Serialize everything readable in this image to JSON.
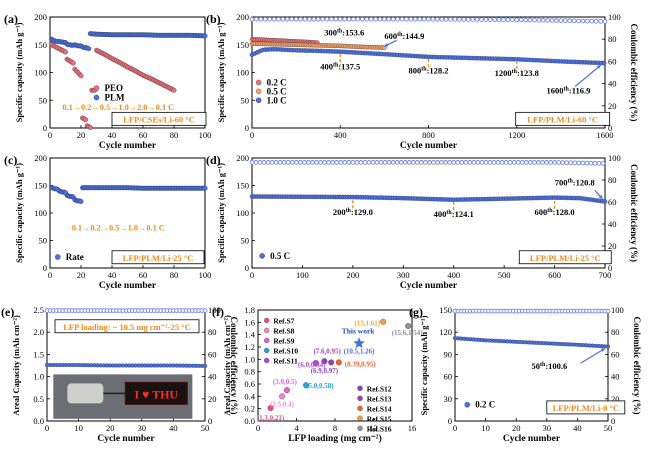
{
  "colors": {
    "red": "#e8707a",
    "blue": "#4a6fe0",
    "orange": "#f7a267",
    "ce": "#6f84e4",
    "ann_orange": "#f08a1a",
    "ann_blue": "#1f4fbf"
  },
  "chart_data": [
    {
      "id": "a",
      "type": "scatter",
      "panel_label": "(a)",
      "xlabel": "Cycle number",
      "ylabel": "Specific capacity (mAh g⁻¹)",
      "xlim": [
        0,
        100
      ],
      "ylim": [
        0,
        200
      ],
      "xticks": [
        "0",
        "20",
        "40",
        "60",
        "80",
        "100"
      ],
      "yticks": [
        "0",
        "50",
        "100",
        "150",
        "200"
      ],
      "legend": [
        "PEO",
        "PLM"
      ],
      "annotations": [
        "0.1→0.2→0.5→1.0→2.0→0.1 C",
        "LFP/CSEs/Li-60 °C"
      ],
      "series": [
        {
          "name": "PEO",
          "color_key": "red",
          "x": [
            1,
            2,
            3,
            4,
            5,
            6,
            7,
            8,
            9,
            10,
            11,
            12,
            13,
            14,
            15,
            16,
            17,
            18,
            19,
            20,
            21,
            22,
            23,
            24,
            25,
            26,
            30,
            35,
            40,
            45,
            50,
            55,
            60,
            65,
            70,
            75,
            80
          ],
          "y": [
            150,
            148,
            146,
            144,
            143,
            141,
            140,
            139,
            138,
            137,
            124,
            122,
            120,
            118,
            117,
            106,
            102,
            98,
            96,
            94,
            18,
            16,
            15,
            4,
            2,
            1,
            140,
            133,
            125,
            118,
            110,
            103,
            95,
            89,
            82,
            75,
            68
          ]
        },
        {
          "name": "PLM",
          "color_key": "blue",
          "x": [
            1,
            2,
            3,
            4,
            5,
            6,
            7,
            8,
            9,
            10,
            11,
            12,
            13,
            14,
            15,
            16,
            17,
            18,
            19,
            20,
            21,
            22,
            23,
            24,
            25,
            26,
            30,
            40,
            50,
            60,
            70,
            80,
            90,
            100
          ],
          "y": [
            160,
            158,
            157,
            156,
            156,
            156,
            155,
            155,
            154,
            154,
            151,
            150,
            150,
            149,
            149,
            150,
            149,
            148,
            148,
            148,
            146,
            145,
            145,
            144,
            143,
            170,
            169,
            168,
            168,
            168,
            167,
            167,
            167,
            166
          ]
        }
      ]
    },
    {
      "id": "b",
      "type": "scatter",
      "panel_label": "(b)",
      "xlabel": "Cycle number",
      "ylabel": "Specific capacity (mAh g⁻¹)",
      "y2label": "Coulombic efficiency (%)",
      "xlim": [
        0,
        1600
      ],
      "ylim": [
        0,
        200
      ],
      "y2lim": [
        0,
        100
      ],
      "xticks": [
        "0",
        "400",
        "800",
        "1200",
        "1600"
      ],
      "yticks": [
        "0",
        "50",
        "100",
        "150",
        "200"
      ],
      "y2ticks": [
        "0",
        "20",
        "40",
        "60",
        "80",
        "100"
      ],
      "legend": [
        "0.2 C",
        "0.5 C",
        "1.0 C"
      ],
      "annotations": [
        "LFP/PLM/Li-60 °C"
      ],
      "data_labels": [
        {
          "cycle": "300",
          "capacity": "153.6"
        },
        {
          "cycle": "400",
          "capacity": "137.5"
        },
        {
          "cycle": "600",
          "capacity": "144.9"
        },
        {
          "cycle": "800",
          "capacity": "128.2"
        },
        {
          "cycle": "1200",
          "capacity": "123.8"
        },
        {
          "cycle": "1600",
          "capacity": "116.9"
        }
      ],
      "series": [
        {
          "name": "0.2 C",
          "color_key": "red",
          "x": [
            0,
            50,
            100,
            150,
            200,
            250,
            300
          ],
          "y": [
            160,
            159,
            158,
            157,
            156,
            155,
            153.6
          ]
        },
        {
          "name": "0.5 C",
          "color_key": "orange",
          "x": [
            0,
            100,
            200,
            300,
            400,
            500,
            600
          ],
          "y": [
            152,
            151,
            150,
            149,
            148,
            146,
            144.9
          ]
        },
        {
          "name": "1.0 C",
          "color_key": "blue",
          "x": [
            0,
            50,
            100,
            200,
            300,
            400,
            600,
            800,
            1000,
            1200,
            1400,
            1600
          ],
          "y": [
            132,
            141,
            142,
            140,
            139,
            137.5,
            133,
            128.2,
            126,
            123.8,
            120,
            116.9
          ]
        }
      ],
      "ce_series": {
        "x": [
          0,
          400,
          800,
          1200,
          1600
        ],
        "y": [
          98,
          98,
          98,
          97.5,
          96
        ]
      }
    },
    {
      "id": "c",
      "type": "scatter",
      "panel_label": "(c)",
      "xlabel": "Cycle number",
      "ylabel": "Specific capacity (mAh g⁻¹)",
      "xlim": [
        0,
        100
      ],
      "ylim": [
        0,
        200
      ],
      "xticks": [
        "0",
        "20",
        "40",
        "60",
        "80",
        "100"
      ],
      "yticks": [
        "0",
        "50",
        "100",
        "150",
        "200"
      ],
      "legend": [
        "Rate"
      ],
      "annotations": [
        "0.1→0.2→0.5→1.0→0.1 C",
        "LFP/PLM/Li-25 °C"
      ],
      "series": [
        {
          "name": "Rate",
          "color_key": "blue",
          "x": [
            1,
            2,
            3,
            4,
            5,
            6,
            7,
            8,
            9,
            10,
            11,
            12,
            13,
            14,
            15,
            16,
            17,
            18,
            19,
            20,
            21,
            30,
            40,
            50,
            60,
            70,
            80,
            90,
            100
          ],
          "y": [
            146,
            145,
            144,
            144,
            143,
            140,
            139,
            138,
            138,
            137,
            132,
            131,
            130,
            130,
            129,
            124,
            123,
            122,
            122,
            121,
            146,
            146,
            146,
            146,
            145,
            145,
            145,
            145,
            145
          ]
        }
      ]
    },
    {
      "id": "d",
      "type": "scatter",
      "panel_label": "(d)",
      "xlabel": "Cycle number",
      "ylabel": "Specific capacity (mAh g⁻¹)",
      "y2label": "Coulombic efficiency (%)",
      "xlim": [
        0,
        700
      ],
      "ylim": [
        0,
        200
      ],
      "y2lim": [
        0,
        100
      ],
      "xticks": [
        "0",
        "100",
        "200",
        "300",
        "400",
        "500",
        "600",
        "700"
      ],
      "yticks": [
        "0",
        "50",
        "100",
        "150",
        "200"
      ],
      "y2ticks": [
        "0",
        "20",
        "40",
        "60",
        "80",
        "100"
      ],
      "legend": [
        "0.5 C"
      ],
      "annotations": [
        "LFP/PLM/Li-25 °C"
      ],
      "data_labels": [
        {
          "cycle": "200",
          "capacity": "129.0"
        },
        {
          "cycle": "400",
          "capacity": "124.1"
        },
        {
          "cycle": "600",
          "capacity": "128.0"
        },
        {
          "cycle": "700",
          "capacity": "120.8"
        }
      ],
      "series": [
        {
          "name": "0.5 C",
          "color_key": "blue",
          "x": [
            0,
            100,
            200,
            300,
            400,
            500,
            600,
            650,
            700
          ],
          "y": [
            130,
            129.5,
            129,
            127,
            124.1,
            126,
            128,
            127,
            120.8
          ]
        }
      ],
      "ce_series": {
        "x": [
          0,
          200,
          400,
          600,
          700
        ],
        "y": [
          96,
          96,
          96,
          96,
          95
        ]
      }
    },
    {
      "id": "e",
      "type": "scatter",
      "panel_label": "(e)",
      "xlabel": "Cycle number",
      "ylabel": "Areal Capacity (mAh cm⁻²)",
      "y2label": "Coulombic efficiency (%)",
      "xlim": [
        0,
        50
      ],
      "ylim": [
        0,
        2.5
      ],
      "y2lim": [
        0,
        100
      ],
      "xticks": [
        "0",
        "10",
        "20",
        "30",
        "40",
        "50"
      ],
      "yticks": [
        "0.0",
        "0.5",
        "1.0",
        "1.5",
        "2.0",
        "2.5"
      ],
      "y2ticks": [
        "0",
        "20",
        "40",
        "60",
        "80",
        "100"
      ],
      "annotations": [
        "LFP loading: ~ 10.5 mg cm⁻²-25 °C"
      ],
      "inset_display_text": "I ♥ THU",
      "series": [
        {
          "name": "capacity",
          "color_key": "blue",
          "x": [
            0,
            10,
            20,
            30,
            40,
            50
          ],
          "y": [
            1.26,
            1.26,
            1.25,
            1.25,
            1.25,
            1.24
          ]
        }
      ],
      "ce_series": {
        "x": [
          0,
          10,
          20,
          30,
          40,
          50
        ],
        "y": [
          99.5,
          99.5,
          99.5,
          99.5,
          99.5,
          99.5
        ]
      }
    },
    {
      "id": "f",
      "type": "scatter",
      "panel_label": "(f)",
      "xlabel": "LFP loading (mg cm⁻²)",
      "ylabel": "Areal Capacity (mAh cm⁻²)",
      "xlim": [
        0,
        16
      ],
      "ylim": [
        0,
        1.8
      ],
      "xticks": [
        "0",
        "4",
        "8",
        "12",
        "16"
      ],
      "yticks": [
        "0.0",
        "0.2",
        "0.4",
        "0.6",
        "0.8",
        "1.0",
        "1.2",
        "1.4",
        "1.6",
        "1.8"
      ],
      "legend": [
        "Ref.S7",
        "Ref.S8",
        "Ref.S9",
        "Ref.S10",
        "Ref.S11",
        "Ref.S12",
        "Ref.S13",
        "Ref.S14",
        "Ref.S15",
        "Ref.S16",
        "This work"
      ],
      "points": [
        {
          "name": "Ref.S7",
          "x": 1.3,
          "y": 0.21,
          "label": "(1.3,0.21)",
          "color": "#e8508a"
        },
        {
          "name": "Ref.S8",
          "x": 2.5,
          "y": 0.4,
          "label": "(2.5,0.4)",
          "color": "#f08ad0"
        },
        {
          "name": "Ref.S9",
          "x": 3.0,
          "y": 0.5,
          "label": "(3.0,0.5)",
          "color": "#e75fd0"
        },
        {
          "name": "Ref.S10",
          "x": 5.0,
          "y": 0.58,
          "label": "(5.0,0.58)",
          "color": "#20a8e0"
        },
        {
          "name": "Ref.S11",
          "x": 6.0,
          "y": 0.94,
          "label": "(6.0,0.94)",
          "color": "#b048d8"
        },
        {
          "name": "Ref.S12",
          "x": 6.9,
          "y": 0.97,
          "label": "(6.9,0.97)",
          "color": "#8a40c8"
        },
        {
          "name": "Ref.S13",
          "x": 7.6,
          "y": 0.95,
          "label": "(7.6,0.95)",
          "color": "#a040b0"
        },
        {
          "name": "Ref.S14",
          "x": 8.39,
          "y": 0.95,
          "label": "(8.39,0.95)",
          "color": "#f0603a"
        },
        {
          "name": "Ref.S15",
          "x": 13.0,
          "y": 1.61,
          "label": "(13,1.61)",
          "color": "#f0a040"
        },
        {
          "name": "Ref.S16",
          "x": 15.6,
          "y": 1.54,
          "label": "(15.6,1.54)",
          "color": "#909090"
        },
        {
          "name": "This work",
          "x": 10.5,
          "y": 1.26,
          "label": "(10.5,1.26)",
          "color": "#4a6fe0"
        }
      ]
    },
    {
      "id": "g",
      "type": "scatter",
      "panel_label": "(g)",
      "xlabel": "Cycle number",
      "ylabel": "Specific capacity (mAh g⁻¹)",
      "y2label": "Coulombic efficiency (%)",
      "xlim": [
        0,
        50
      ],
      "ylim": [
        0,
        150
      ],
      "y2lim": [
        0,
        100
      ],
      "xticks": [
        "0",
        "10",
        "20",
        "30",
        "40",
        "50"
      ],
      "yticks": [
        "0",
        "30",
        "60",
        "90",
        "120",
        "150"
      ],
      "y2ticks": [
        "0",
        "20",
        "40",
        "60",
        "80",
        "100"
      ],
      "legend": [
        "0.2 C"
      ],
      "annotations": [
        "LFP/PLM/Li-0 °C"
      ],
      "data_labels": [
        {
          "cycle": "50",
          "capacity": "100.6"
        }
      ],
      "series": [
        {
          "name": "0.2 C",
          "color_key": "blue",
          "x": [
            0,
            10,
            20,
            30,
            40,
            50
          ],
          "y": [
            112,
            109,
            107,
            105,
            103,
            100.6
          ]
        }
      ],
      "ce_series": {
        "x": [
          0,
          10,
          20,
          30,
          40,
          50
        ],
        "y": [
          99,
          99,
          99,
          99,
          99,
          99
        ]
      }
    }
  ]
}
